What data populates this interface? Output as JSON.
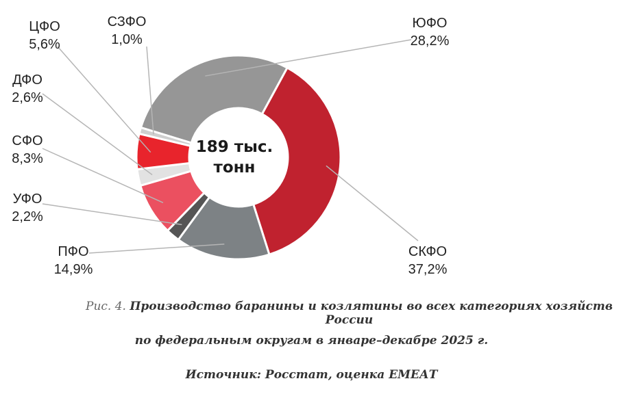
{
  "chart_data": {
    "type": "pie",
    "style": "donut",
    "center_label": [
      "189 тыс.",
      "тонн"
    ],
    "slices": [
      {
        "name": "ЮФО",
        "value_label": "28,2%",
        "value": 28.2,
        "color": "#969696"
      },
      {
        "name": "СКФО",
        "value_label": "37,2%",
        "value": 37.2,
        "color": "#c0222f"
      },
      {
        "name": "ПФО",
        "value_label": "14,9%",
        "value": 14.9,
        "color": "#7d8285"
      },
      {
        "name": "УФО",
        "value_label": "2,2%",
        "value": 2.2,
        "color": "#555555"
      },
      {
        "name": "СФО",
        "value_label": "8,3%",
        "value": 8.3,
        "color": "#eb5060"
      },
      {
        "name": "ДФО",
        "value_label": "2,6%",
        "value": 2.6,
        "color": "#e2e2e2"
      },
      {
        "name": "ЦФО",
        "value_label": "5,6%",
        "value": 5.6,
        "color": "#e8242c"
      },
      {
        "name": "СЗФО",
        "value_label": "1,0%",
        "value": 1.0,
        "color": "#cfcfcf"
      }
    ]
  },
  "caption": {
    "prefix": "Рис. 4.",
    "line1": "Производство баранины и козлятины во всех категориях хозяйств России",
    "line2": "по федеральным округам в январе–декабре 2025 г.",
    "line3": "Источник: Росстат, оценка ЕМЕАТ"
  }
}
